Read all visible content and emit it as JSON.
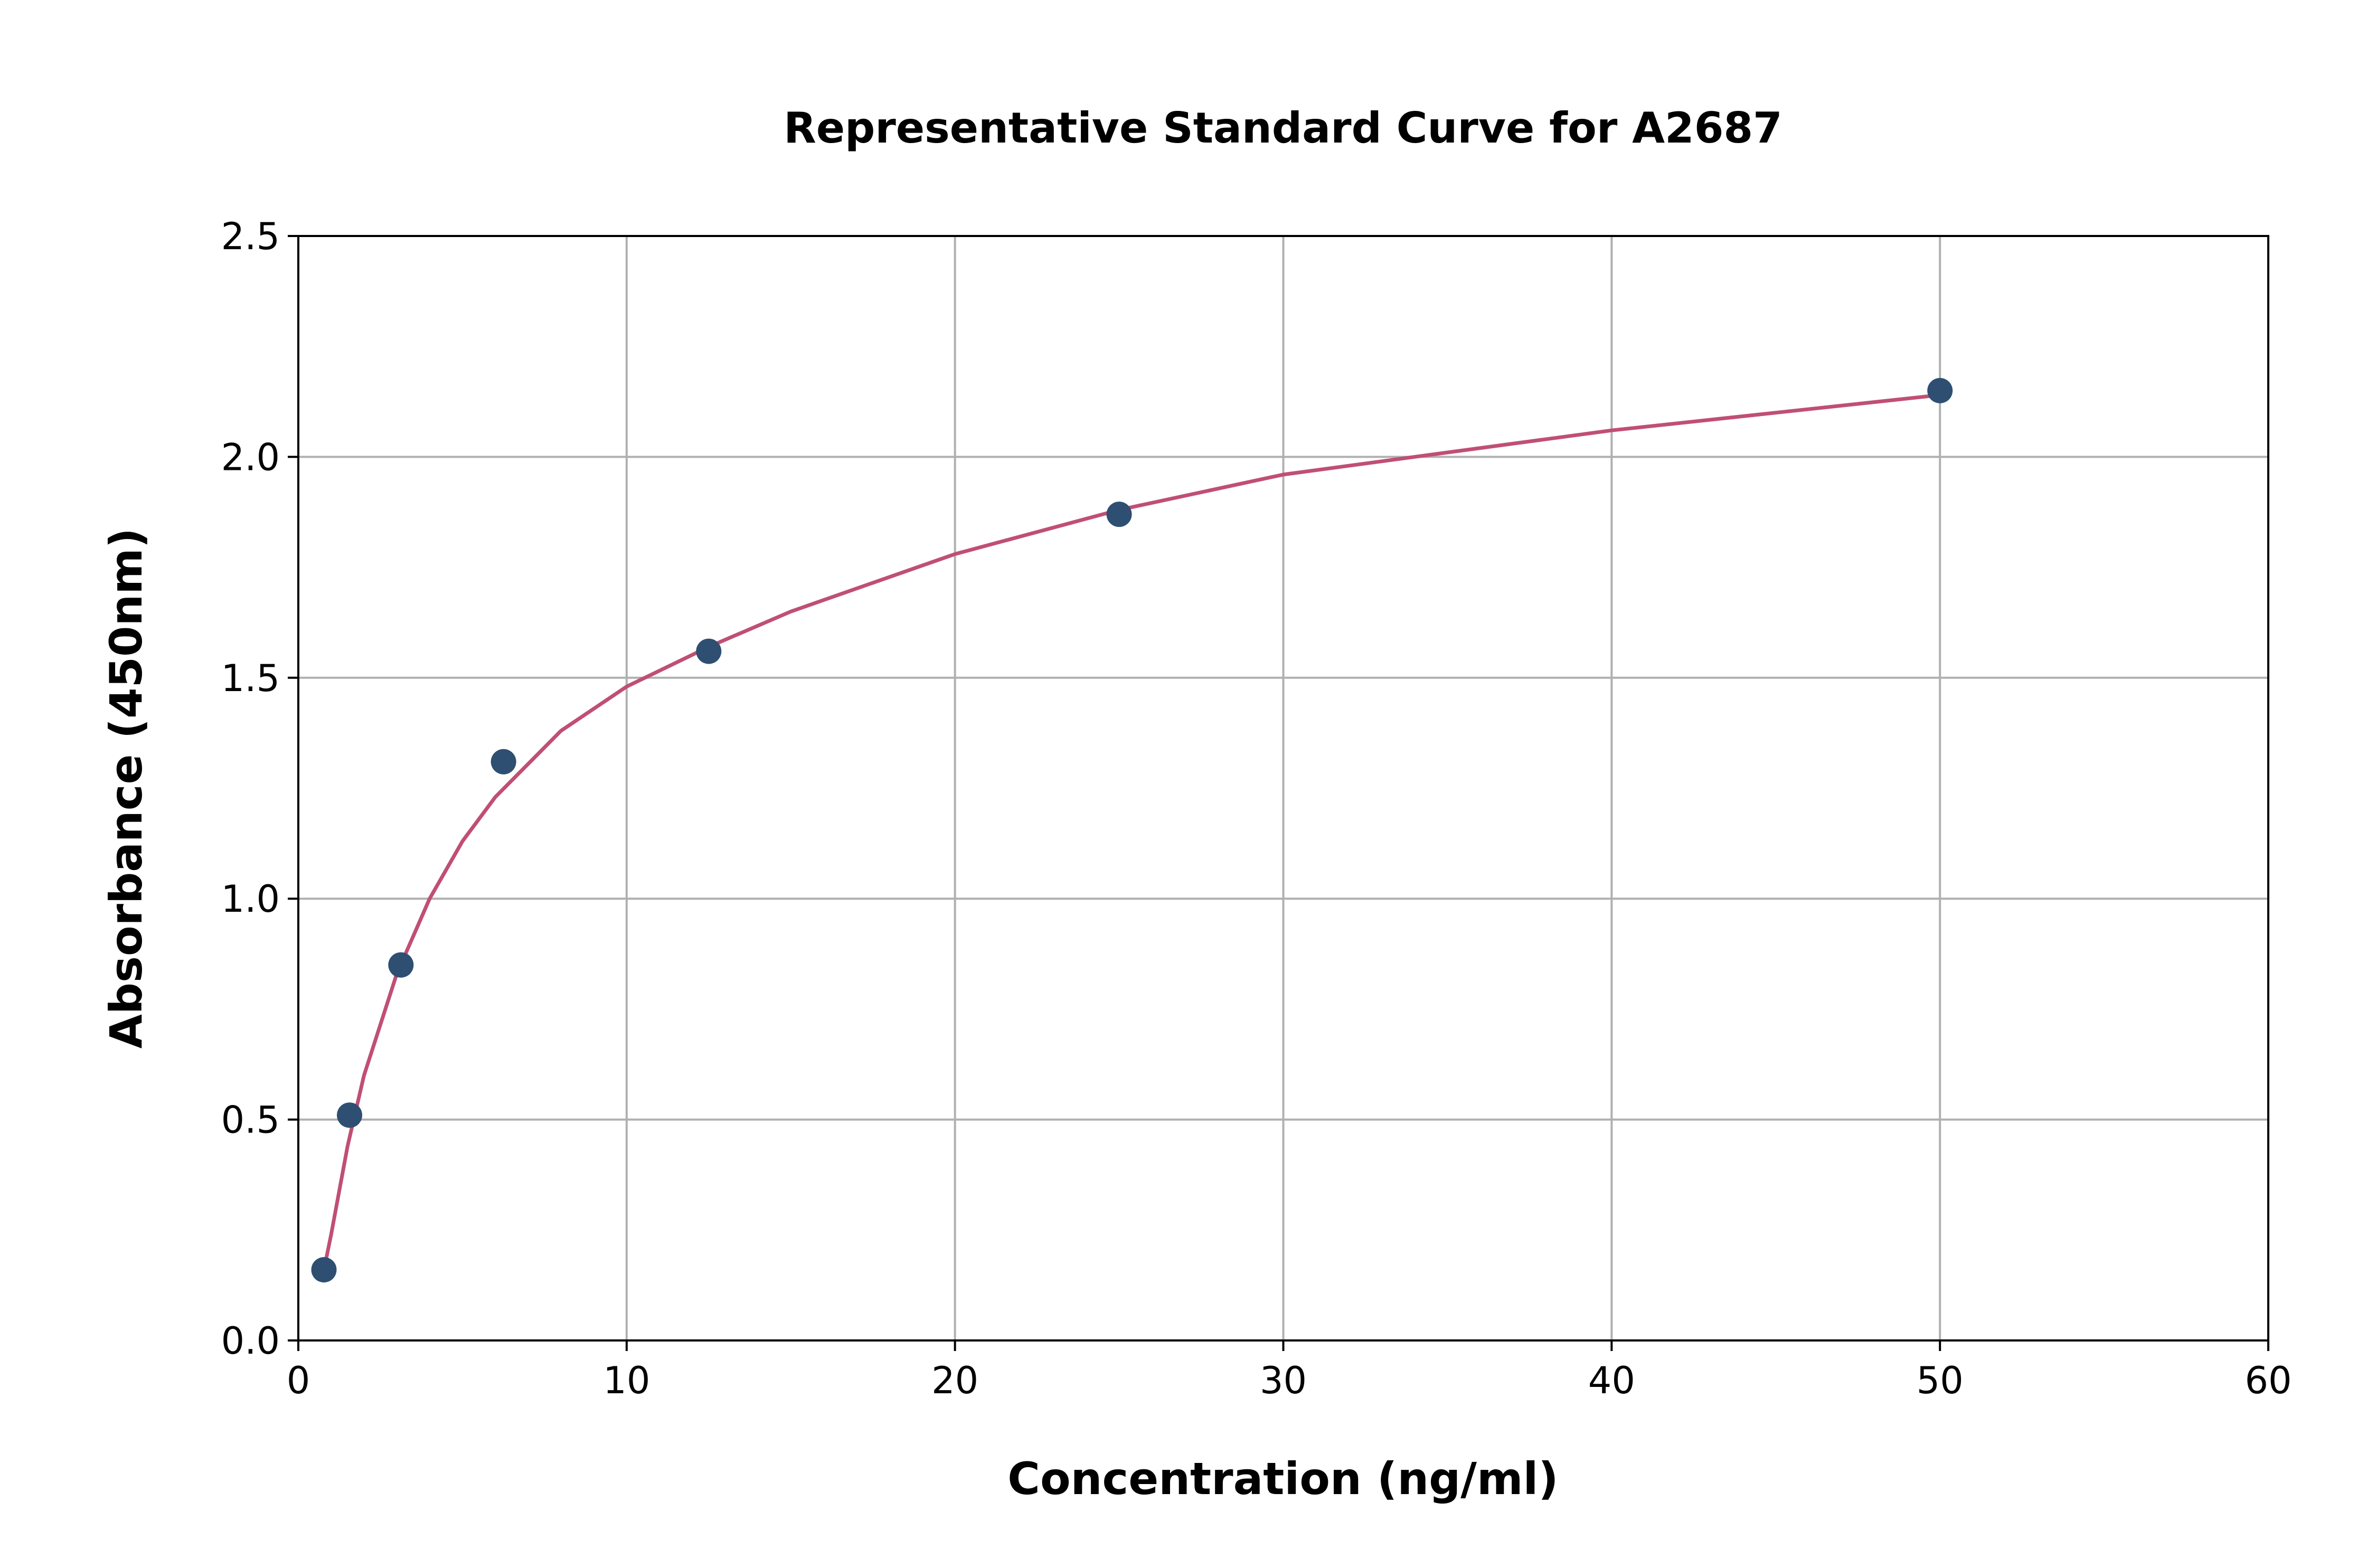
{
  "chart_data": {
    "type": "scatter",
    "title": "Representative Standard Curve for A2687",
    "xlabel": "Concentration (ng/ml)",
    "ylabel": "Absorbance (450nm)",
    "xlim": [
      0,
      60
    ],
    "ylim": [
      0,
      2.5
    ],
    "xticks": [
      "0",
      "10",
      "20",
      "30",
      "40",
      "50",
      "60"
    ],
    "yticks": [
      "0.0",
      "0.5",
      "1.0",
      "1.5",
      "2.0",
      "2.5"
    ],
    "grid": true,
    "series": [
      {
        "name": "standards",
        "x": [
          0.78,
          1.56,
          3.125,
          6.25,
          12.5,
          25,
          50
        ],
        "y": [
          0.16,
          0.51,
          0.85,
          1.31,
          1.56,
          1.87,
          2.15
        ]
      }
    ],
    "fit_curve": {
      "x": [
        0.78,
        1,
        1.5,
        2,
        3,
        4,
        5,
        6,
        8,
        10,
        12.5,
        15,
        20,
        25,
        30,
        35,
        40,
        45,
        50
      ],
      "y": [
        0.16,
        0.24,
        0.44,
        0.6,
        0.83,
        1.0,
        1.13,
        1.23,
        1.38,
        1.48,
        1.57,
        1.65,
        1.78,
        1.88,
        1.96,
        2.01,
        2.06,
        2.1,
        2.14
      ]
    },
    "colors": {
      "points": "#2e4f71",
      "curve": "#c04f74",
      "grid": "#b0b0b0"
    }
  }
}
